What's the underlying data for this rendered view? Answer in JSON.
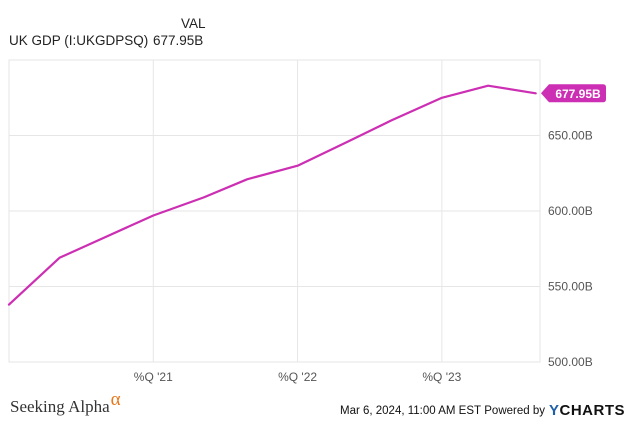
{
  "legend": {
    "column_header": "VAL",
    "series_label": "UK GDP (I:UKGDPSQ)",
    "series_value": "677.95B"
  },
  "colors": {
    "series": "#cc2fb3",
    "grid": "#e6e6e6",
    "axis_text": "#555555"
  },
  "chart_data": {
    "type": "line",
    "series": [
      {
        "name": "UK GDP (I:UKGDPSQ)",
        "points": [
          {
            "x": 2020.0,
            "y": 538
          },
          {
            "x": 2020.35,
            "y": 569
          },
          {
            "x": 2020.65,
            "y": 582
          },
          {
            "x": 2021.0,
            "y": 597
          },
          {
            "x": 2021.35,
            "y": 609
          },
          {
            "x": 2021.65,
            "y": 621
          },
          {
            "x": 2022.0,
            "y": 630
          },
          {
            "x": 2022.35,
            "y": 646
          },
          {
            "x": 2022.65,
            "y": 660
          },
          {
            "x": 2023.0,
            "y": 675
          },
          {
            "x": 2023.32,
            "y": 683
          },
          {
            "x": 2023.65,
            "y": 677.95
          }
        ]
      }
    ],
    "xlim": [
      2020.0,
      2023.68
    ],
    "ylim": [
      500,
      700
    ],
    "x_ticks": [
      {
        "x": 2021.0,
        "label": "%Q '21"
      },
      {
        "x": 2022.0,
        "label": "%Q '22"
      },
      {
        "x": 2023.0,
        "label": "%Q '23"
      }
    ],
    "y_ticks": [
      {
        "y": 500,
        "label": "500.00B"
      },
      {
        "y": 550,
        "label": "550.00B"
      },
      {
        "y": 600,
        "label": "600.00B"
      },
      {
        "y": 650,
        "label": "650.00B"
      }
    ],
    "end_label": "677.95B",
    "grid": true
  },
  "footer": {
    "brand_text": "Seeking Alpha",
    "brand_symbol": "α",
    "timestamp": "Mar 6, 2024, 11:00 AM EST",
    "powered_by": "Powered by",
    "provider_initial": "Y",
    "provider_rest": "CHARTS"
  }
}
